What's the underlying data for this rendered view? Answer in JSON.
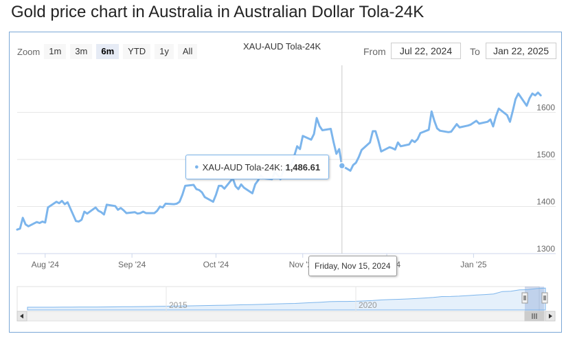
{
  "page": {
    "title": "Gold price chart in Australia in Australian Dollar Tola-24K"
  },
  "toolbar": {
    "zoom_label": "Zoom",
    "zoom_buttons": [
      "1m",
      "3m",
      "6m",
      "YTD",
      "1y",
      "All"
    ],
    "active_zoom": "6m",
    "from_label": "From",
    "from_value": "Jul 22, 2024",
    "to_label": "To",
    "to_value": "Jan 22, 2025"
  },
  "tooltip": {
    "series_name": "XAU-AUD Tola-24K:",
    "value_label": "1,486.61",
    "date_label": "Friday, Nov 15, 2024"
  },
  "navigator": {
    "year_labels": [
      "2015",
      "2020"
    ]
  },
  "colors": {
    "series": "#7cb5ec",
    "frame": "#7aa7d6",
    "grid": "#e6e6e6"
  },
  "chart_data": {
    "type": "line",
    "title": "XAU-AUD Tola-24K",
    "xlabel": "",
    "ylabel": "",
    "x_range": [
      "2024-07-22",
      "2025-01-22"
    ],
    "ylim": [
      1300,
      1700
    ],
    "y_ticks": [
      1300,
      1400,
      1500,
      1600
    ],
    "x_ticks": [
      {
        "date": "2024-08-01",
        "label": "Aug '24"
      },
      {
        "date": "2024-09-01",
        "label": "Sep '24"
      },
      {
        "date": "2024-10-01",
        "label": "Oct '24"
      },
      {
        "date": "2024-11-01",
        "label": "Nov '24"
      },
      {
        "date": "2024-12-01",
        "label": "Dec '24"
      },
      {
        "date": "2025-01-01",
        "label": "Jan '25"
      }
    ],
    "grid": true,
    "legend": "none",
    "series": [
      {
        "name": "XAU-AUD Tola-24K",
        "points": [
          [
            "2024-07-22",
            1351
          ],
          [
            "2024-07-23",
            1353
          ],
          [
            "2024-07-24",
            1376
          ],
          [
            "2024-07-25",
            1362
          ],
          [
            "2024-07-26",
            1358
          ],
          [
            "2024-07-29",
            1367
          ],
          [
            "2024-07-30",
            1365
          ],
          [
            "2024-07-31",
            1368
          ],
          [
            "2024-08-01",
            1366
          ],
          [
            "2024-08-02",
            1398
          ],
          [
            "2024-08-05",
            1410
          ],
          [
            "2024-08-06",
            1407
          ],
          [
            "2024-08-07",
            1412
          ],
          [
            "2024-08-08",
            1405
          ],
          [
            "2024-08-09",
            1409
          ],
          [
            "2024-08-12",
            1369
          ],
          [
            "2024-08-13",
            1368
          ],
          [
            "2024-08-14",
            1372
          ],
          [
            "2024-08-15",
            1389
          ],
          [
            "2024-08-16",
            1385
          ],
          [
            "2024-08-19",
            1398
          ],
          [
            "2024-08-20",
            1391
          ],
          [
            "2024-08-21",
            1388
          ],
          [
            "2024-08-22",
            1383
          ],
          [
            "2024-08-23",
            1404
          ],
          [
            "2024-08-26",
            1401
          ],
          [
            "2024-08-27",
            1393
          ],
          [
            "2024-08-28",
            1397
          ],
          [
            "2024-08-29",
            1392
          ],
          [
            "2024-08-30",
            1386
          ],
          [
            "2024-09-02",
            1388
          ],
          [
            "2024-09-03",
            1385
          ],
          [
            "2024-09-04",
            1386
          ],
          [
            "2024-09-05",
            1389
          ],
          [
            "2024-09-06",
            1386
          ],
          [
            "2024-09-09",
            1386
          ],
          [
            "2024-09-10",
            1391
          ],
          [
            "2024-09-11",
            1400
          ],
          [
            "2024-09-12",
            1398
          ],
          [
            "2024-09-13",
            1406
          ],
          [
            "2024-09-16",
            1405
          ],
          [
            "2024-09-17",
            1406
          ],
          [
            "2024-09-18",
            1410
          ],
          [
            "2024-09-19",
            1425
          ],
          [
            "2024-09-20",
            1444
          ],
          [
            "2024-09-23",
            1446
          ],
          [
            "2024-09-24",
            1437
          ],
          [
            "2024-09-25",
            1435
          ],
          [
            "2024-09-26",
            1430
          ],
          [
            "2024-09-27",
            1420
          ],
          [
            "2024-09-30",
            1410
          ],
          [
            "2024-10-01",
            1425
          ],
          [
            "2024-10-02",
            1444
          ],
          [
            "2024-10-03",
            1444
          ],
          [
            "2024-10-04",
            1438
          ],
          [
            "2024-10-07",
            1460
          ],
          [
            "2024-10-08",
            1443
          ],
          [
            "2024-10-09",
            1437
          ],
          [
            "2024-10-10",
            1447
          ],
          [
            "2024-10-11",
            1440
          ],
          [
            "2024-10-14",
            1428
          ],
          [
            "2024-10-15",
            1447
          ],
          [
            "2024-10-16",
            1455
          ],
          [
            "2024-10-17",
            1466
          ],
          [
            "2024-10-18",
            1460
          ],
          [
            "2024-10-21",
            1458
          ],
          [
            "2024-10-22",
            1473
          ],
          [
            "2024-10-23",
            1467
          ],
          [
            "2024-10-24",
            1458
          ],
          [
            "2024-10-25",
            1476
          ],
          [
            "2024-10-28",
            1490
          ],
          [
            "2024-10-29",
            1508
          ],
          [
            "2024-10-30",
            1528
          ],
          [
            "2024-10-31",
            1522
          ],
          [
            "2024-11-01",
            1550
          ],
          [
            "2024-11-04",
            1542
          ],
          [
            "2024-11-05",
            1554
          ],
          [
            "2024-11-06",
            1588
          ],
          [
            "2024-11-07",
            1571
          ],
          [
            "2024-11-08",
            1562
          ],
          [
            "2024-11-11",
            1565
          ],
          [
            "2024-11-12",
            1537
          ],
          [
            "2024-11-13",
            1512
          ],
          [
            "2024-11-14",
            1522
          ],
          [
            "2024-11-15",
            1486.61
          ],
          [
            "2024-11-18",
            1476
          ],
          [
            "2024-11-19",
            1488
          ],
          [
            "2024-11-20",
            1493
          ],
          [
            "2024-11-21",
            1505
          ],
          [
            "2024-11-22",
            1520
          ],
          [
            "2024-11-25",
            1536
          ],
          [
            "2024-11-26",
            1560
          ],
          [
            "2024-11-27",
            1560
          ],
          [
            "2024-11-28",
            1540
          ],
          [
            "2024-11-29",
            1517
          ],
          [
            "2024-12-02",
            1526
          ],
          [
            "2024-12-03",
            1524
          ],
          [
            "2024-12-04",
            1521
          ],
          [
            "2024-12-05",
            1536
          ],
          [
            "2024-12-06",
            1528
          ],
          [
            "2024-12-09",
            1532
          ],
          [
            "2024-12-10",
            1541
          ],
          [
            "2024-12-11",
            1537
          ],
          [
            "2024-12-12",
            1543
          ],
          [
            "2024-12-13",
            1556
          ],
          [
            "2024-12-16",
            1563
          ],
          [
            "2024-12-17",
            1602
          ],
          [
            "2024-12-18",
            1582
          ],
          [
            "2024-12-19",
            1566
          ],
          [
            "2024-12-20",
            1561
          ],
          [
            "2024-12-23",
            1558
          ],
          [
            "2024-12-24",
            1559
          ],
          [
            "2024-12-26",
            1575
          ],
          [
            "2024-12-27",
            1568
          ],
          [
            "2024-12-30",
            1572
          ],
          [
            "2024-12-31",
            1574
          ],
          [
            "2025-01-02",
            1582
          ],
          [
            "2025-01-03",
            1576
          ],
          [
            "2025-01-06",
            1580
          ],
          [
            "2025-01-07",
            1585
          ],
          [
            "2025-01-08",
            1570
          ],
          [
            "2025-01-09",
            1592
          ],
          [
            "2025-01-10",
            1608
          ],
          [
            "2025-01-13",
            1594
          ],
          [
            "2025-01-14",
            1580
          ],
          [
            "2025-01-15",
            1603
          ],
          [
            "2025-01-16",
            1628
          ],
          [
            "2025-01-17",
            1640
          ],
          [
            "2025-01-20",
            1614
          ],
          [
            "2025-01-21",
            1630
          ],
          [
            "2025-01-22",
            1640
          ],
          [
            "2025-01-23",
            1636
          ],
          [
            "2025-01-24",
            1642
          ],
          [
            "2025-01-25",
            1636
          ]
        ]
      }
    ],
    "highlight": {
      "date": "2024-11-15",
      "value": 1486.61
    }
  }
}
